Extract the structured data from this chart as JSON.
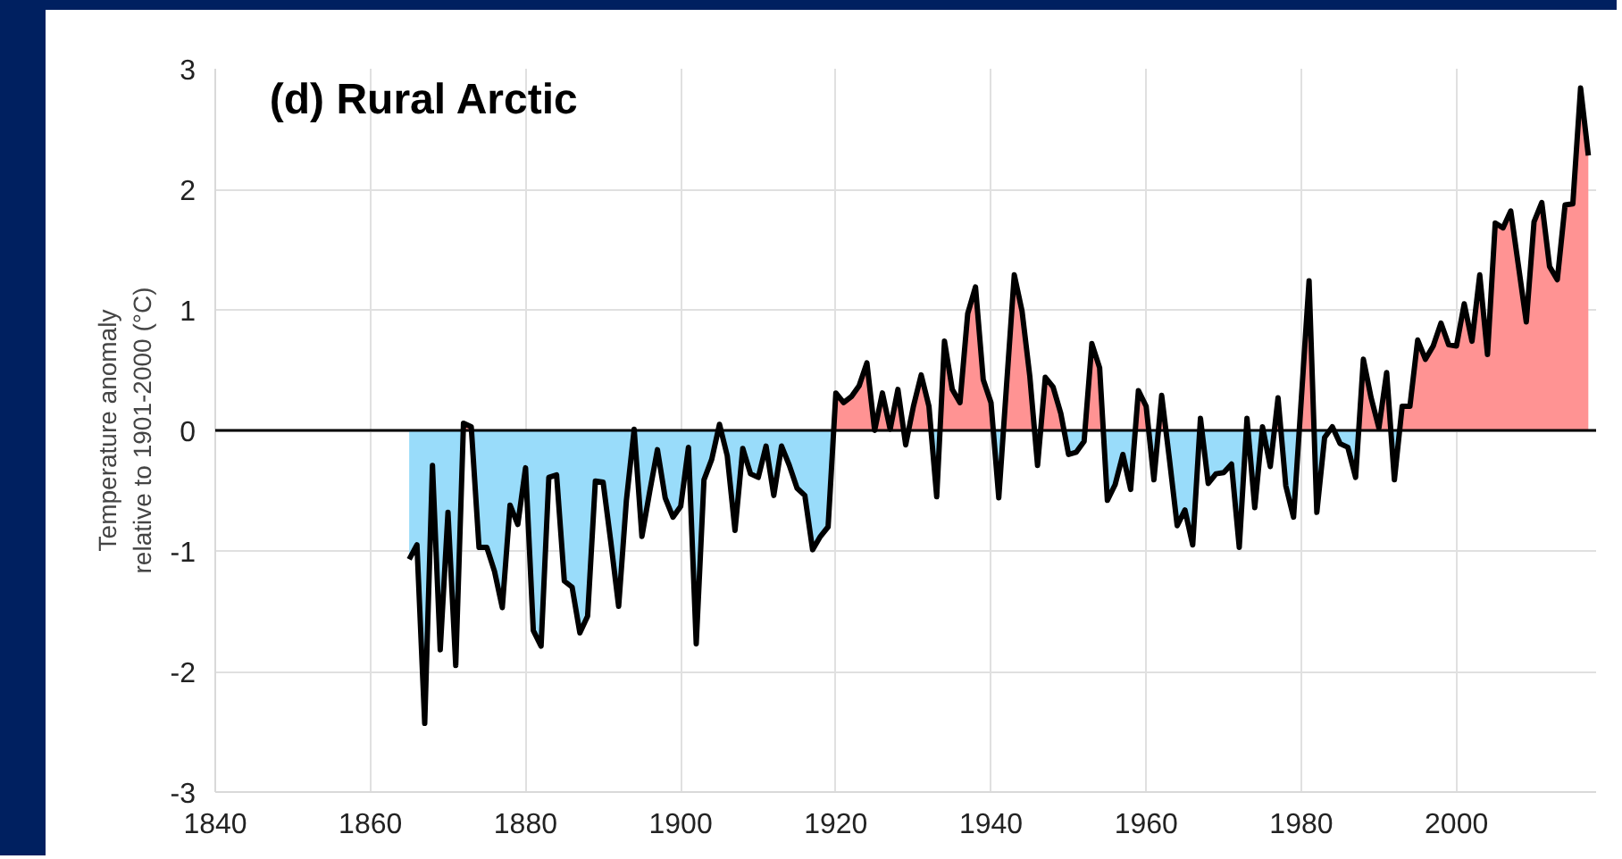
{
  "chart_data": {
    "type": "area",
    "title": "(d) Rural Arctic",
    "ylabel": "Temperature anomaly\nrelative to 1901-2000 (°C)",
    "x": [
      1865,
      1866,
      1867,
      1868,
      1869,
      1870,
      1871,
      1872,
      1873,
      1874,
      1875,
      1876,
      1877,
      1878,
      1879,
      1880,
      1881,
      1882,
      1883,
      1884,
      1885,
      1886,
      1887,
      1888,
      1889,
      1890,
      1891,
      1892,
      1893,
      1894,
      1895,
      1896,
      1897,
      1898,
      1899,
      1900,
      1901,
      1902,
      1903,
      1904,
      1905,
      1906,
      1907,
      1908,
      1909,
      1910,
      1911,
      1912,
      1913,
      1914,
      1915,
      1916,
      1917,
      1918,
      1919,
      1920,
      1921,
      1922,
      1923,
      1924,
      1925,
      1926,
      1927,
      1928,
      1929,
      1930,
      1931,
      1932,
      1933,
      1934,
      1935,
      1936,
      1937,
      1938,
      1939,
      1940,
      1941,
      1942,
      1943,
      1944,
      1945,
      1946,
      1947,
      1948,
      1949,
      1950,
      1951,
      1952,
      1953,
      1954,
      1955,
      1956,
      1957,
      1958,
      1959,
      1960,
      1961,
      1962,
      1963,
      1964,
      1965,
      1966,
      1967,
      1968,
      1969,
      1970,
      1971,
      1972,
      1973,
      1974,
      1975,
      1976,
      1977,
      1978,
      1979,
      1980,
      1981,
      1982,
      1983,
      1984,
      1985,
      1986,
      1987,
      1988,
      1989,
      1990,
      1991,
      1992,
      1993,
      1994,
      1995,
      1996,
      1997,
      1998,
      1999,
      2000,
      2001,
      2002,
      2003,
      2004,
      2005,
      2006,
      2007,
      2008,
      2009,
      2010,
      2011,
      2012,
      2013,
      2014,
      2015,
      2016,
      2017
    ],
    "series": [
      {
        "color": "#99dcfa",
        "values": [
          -1.07,
          -0.95,
          -2.43,
          -0.29,
          -1.82,
          -0.68,
          -1.95,
          null,
          null,
          -0.97,
          -0.97,
          -1.17,
          -1.47,
          -0.62,
          -0.78,
          -0.31,
          -1.66,
          -1.79,
          -0.39,
          -0.37,
          -1.25,
          -1.3,
          -1.68,
          -1.54,
          -0.42,
          -0.43,
          -0.93,
          -1.46,
          -0.58,
          null,
          -0.88,
          -0.51,
          -0.16,
          -0.56,
          -0.72,
          -0.63,
          -0.14,
          -1.77,
          -0.41,
          -0.24,
          null,
          -0.21,
          -0.83,
          -0.15,
          -0.36,
          -0.39,
          -0.13,
          -0.54,
          -0.13,
          -0.29,
          -0.48,
          -0.54,
          -0.99,
          -0.88,
          -0.8,
          null,
          null,
          null,
          null,
          null,
          null,
          null,
          null,
          null,
          -0.12,
          null,
          null,
          null,
          -0.55,
          null,
          null,
          null,
          null,
          null,
          null,
          null,
          -0.56,
          null,
          null,
          null,
          null,
          -0.29,
          null,
          null,
          null,
          -0.2,
          -0.18,
          -0.09,
          null,
          null,
          -0.58,
          -0.45,
          -0.2,
          -0.49,
          null,
          null,
          -0.41,
          null,
          -0.24,
          -0.79,
          -0.66,
          -0.95,
          null,
          -0.44,
          -0.36,
          -0.35,
          -0.28,
          -0.97,
          null,
          -0.64,
          null,
          -0.3,
          null,
          -0.46,
          -0.72,
          null,
          null,
          -0.68,
          -0.06,
          null,
          -0.11,
          -0.14,
          -0.39,
          null,
          null,
          null,
          null,
          -0.41,
          null,
          null,
          null,
          null,
          null,
          null,
          null,
          null,
          null,
          null,
          null,
          null,
          null,
          null,
          null,
          null,
          null,
          null,
          null,
          null,
          null,
          null,
          null,
          null,
          null
        ]
      },
      {
        "color": "#ff9393",
        "values": [
          null,
          null,
          null,
          null,
          null,
          null,
          null,
          0.06,
          0.03,
          null,
          null,
          null,
          null,
          null,
          null,
          null,
          null,
          null,
          null,
          null,
          null,
          null,
          null,
          null,
          null,
          null,
          null,
          null,
          null,
          0.01,
          null,
          null,
          null,
          null,
          null,
          null,
          null,
          null,
          null,
          null,
          0.05,
          null,
          null,
          null,
          null,
          null,
          null,
          null,
          null,
          null,
          null,
          null,
          null,
          null,
          null,
          0.31,
          0.23,
          0.28,
          0.37,
          0.56,
          0.0,
          0.31,
          0.01,
          0.34,
          null,
          0.2,
          0.46,
          0.2,
          null,
          0.74,
          0.34,
          0.23,
          0.97,
          1.19,
          0.42,
          0.23,
          null,
          0.37,
          1.29,
          0.99,
          0.45,
          null,
          0.44,
          0.36,
          0.14,
          null,
          null,
          null,
          0.72,
          0.52,
          null,
          null,
          null,
          null,
          0.33,
          0.2,
          null,
          0.29,
          null,
          null,
          null,
          null,
          0.1,
          null,
          null,
          null,
          null,
          null,
          0.1,
          null,
          0.03,
          null,
          0.27,
          null,
          null,
          0.26,
          1.24,
          null,
          null,
          0.03,
          null,
          null,
          null,
          0.59,
          0.27,
          0.02,
          0.48,
          null,
          0.2,
          0.2,
          0.75,
          0.59,
          0.7,
          0.89,
          0.71,
          0.7,
          1.05,
          0.74,
          1.29,
          0.63,
          1.72,
          1.68,
          1.82,
          1.36,
          0.9,
          1.73,
          1.89,
          1.36,
          1.25,
          1.87,
          1.88,
          2.84,
          2.28
        ]
      },
      {
        "type": "line",
        "color": "#000000",
        "values": [
          -1.07,
          -0.95,
          -2.43,
          -0.29,
          -1.82,
          -0.68,
          -1.95,
          0.06,
          0.03,
          -0.97,
          -0.97,
          -1.17,
          -1.47,
          -0.62,
          -0.78,
          -0.31,
          -1.66,
          -1.79,
          -0.39,
          -0.37,
          -1.25,
          -1.3,
          -1.68,
          -1.54,
          -0.42,
          -0.43,
          -0.93,
          -1.46,
          -0.58,
          0.01,
          -0.88,
          -0.51,
          -0.16,
          -0.56,
          -0.72,
          -0.63,
          -0.14,
          -1.77,
          -0.41,
          -0.24,
          0.05,
          -0.21,
          -0.83,
          -0.15,
          -0.36,
          -0.39,
          -0.13,
          -0.54,
          -0.13,
          -0.29,
          -0.48,
          -0.54,
          -0.99,
          -0.88,
          -0.8,
          0.31,
          0.23,
          0.28,
          0.37,
          0.56,
          0.0,
          0.31,
          0.01,
          0.34,
          -0.12,
          0.2,
          0.46,
          0.2,
          -0.55,
          0.74,
          0.34,
          0.23,
          0.97,
          1.19,
          0.42,
          0.23,
          -0.56,
          0.37,
          1.29,
          0.99,
          0.45,
          -0.29,
          0.44,
          0.36,
          0.14,
          -0.2,
          -0.18,
          -0.09,
          0.72,
          0.52,
          -0.58,
          -0.45,
          -0.2,
          -0.49,
          0.33,
          0.2,
          -0.41,
          0.29,
          -0.24,
          -0.79,
          -0.66,
          -0.95,
          0.1,
          -0.44,
          -0.36,
          -0.35,
          -0.28,
          -0.97,
          0.1,
          -0.64,
          0.03,
          -0.3,
          0.27,
          -0.46,
          -0.72,
          0.26,
          1.24,
          -0.68,
          -0.06,
          0.03,
          -0.11,
          -0.14,
          -0.39,
          0.59,
          0.27,
          0.02,
          0.48,
          -0.41,
          0.2,
          0.2,
          0.75,
          0.59,
          0.7,
          0.89,
          0.71,
          0.7,
          1.05,
          0.74,
          1.29,
          0.63,
          1.72,
          1.68,
          1.82,
          1.36,
          0.9,
          1.73,
          1.89,
          1.36,
          1.25,
          1.87,
          1.88,
          2.84,
          2.28
        ]
      }
    ],
    "xlim": [
      1840,
      2018
    ],
    "xticks": [
      1840,
      1860,
      1880,
      1900,
      1920,
      1940,
      1960,
      1980,
      2000
    ],
    "ylim": [
      -3,
      3
    ],
    "yticks": [
      -3,
      -2,
      -1,
      0,
      1,
      2,
      3
    ],
    "ref_lines": [
      {
        "axis": "y",
        "value": 0,
        "color": "#000000"
      }
    ],
    "grid": true
  }
}
